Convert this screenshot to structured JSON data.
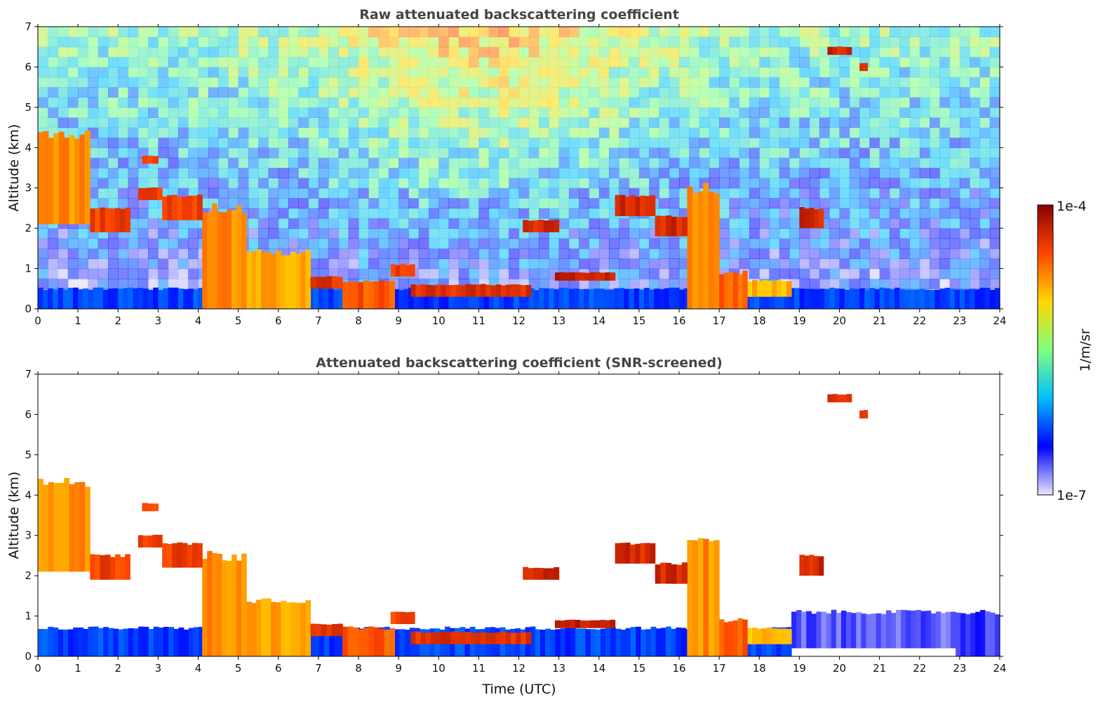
{
  "chart_data": [
    {
      "type": "heatmap",
      "title": "Raw attenuated backscattering coefficient",
      "xlabel": "",
      "ylabel": "Altitude (km)",
      "xlim": [
        0,
        24
      ],
      "ylim": [
        0,
        7
      ],
      "xticks": [
        "0",
        "1",
        "2",
        "3",
        "4",
        "5",
        "6",
        "7",
        "8",
        "9",
        "10",
        "11",
        "12",
        "13",
        "14",
        "15",
        "16",
        "17",
        "18",
        "19",
        "20",
        "21",
        "22",
        "23",
        "24"
      ],
      "yticks": [
        "0",
        "1",
        "2",
        "3",
        "4",
        "5",
        "6",
        "7"
      ],
      "background_noise": "strong, increasing with altitude; maximum around 9-14 UTC",
      "features": [
        {
          "t0": 0.0,
          "t1": 1.3,
          "bottom_km": 2.1,
          "top_km": 4.3,
          "level": 0.75
        },
        {
          "t0": 1.3,
          "t1": 2.3,
          "bottom_km": 1.9,
          "top_km": 2.5,
          "level": 0.85
        },
        {
          "t0": 2.5,
          "t1": 3.1,
          "bottom_km": 2.7,
          "top_km": 3.0,
          "level": 0.85
        },
        {
          "t0": 2.6,
          "t1": 3.0,
          "bottom_km": 3.6,
          "top_km": 3.8,
          "level": 0.85
        },
        {
          "t0": 3.1,
          "t1": 4.1,
          "bottom_km": 2.2,
          "top_km": 2.8,
          "level": 0.85
        },
        {
          "t0": 4.1,
          "t1": 5.2,
          "bottom_km": 0.0,
          "top_km": 2.5,
          "level": 0.75
        },
        {
          "t0": 5.2,
          "t1": 6.8,
          "bottom_km": 0.0,
          "top_km": 1.4,
          "level": 0.72
        },
        {
          "t0": 6.8,
          "t1": 7.6,
          "bottom_km": 0.5,
          "top_km": 0.8,
          "level": 0.88
        },
        {
          "t0": 7.6,
          "t1": 8.9,
          "bottom_km": 0.0,
          "top_km": 0.7,
          "level": 0.82
        },
        {
          "t0": 8.8,
          "t1": 9.4,
          "bottom_km": 0.8,
          "top_km": 1.1,
          "level": 0.85
        },
        {
          "t0": 9.3,
          "t1": 12.3,
          "bottom_km": 0.3,
          "top_km": 0.6,
          "level": 0.88
        },
        {
          "t0": 12.1,
          "t1": 13.0,
          "bottom_km": 1.9,
          "top_km": 2.2,
          "level": 0.9
        },
        {
          "t0": 12.9,
          "t1": 14.4,
          "bottom_km": 0.7,
          "top_km": 0.9,
          "level": 0.92
        },
        {
          "t0": 14.4,
          "t1": 15.4,
          "bottom_km": 2.3,
          "top_km": 2.8,
          "level": 0.9
        },
        {
          "t0": 15.4,
          "t1": 16.2,
          "bottom_km": 1.8,
          "top_km": 2.3,
          "level": 0.9
        },
        {
          "t0": 16.2,
          "t1": 17.0,
          "bottom_km": 0.0,
          "top_km": 3.0,
          "level": 0.75
        },
        {
          "t0": 17.0,
          "t1": 17.7,
          "bottom_km": 0.0,
          "top_km": 0.9,
          "level": 0.8
        },
        {
          "t0": 17.7,
          "t1": 18.8,
          "bottom_km": 0.3,
          "top_km": 0.7,
          "level": 0.7
        },
        {
          "t0": 19.0,
          "t1": 19.6,
          "bottom_km": 2.0,
          "top_km": 2.5,
          "level": 0.9
        },
        {
          "t0": 19.7,
          "t1": 20.3,
          "bottom_km": 6.3,
          "top_km": 6.5,
          "level": 0.9
        },
        {
          "t0": 20.5,
          "t1": 20.7,
          "bottom_km": 5.9,
          "top_km": 6.1,
          "level": 0.9
        },
        {
          "t0": 0.0,
          "t1": 24.0,
          "bottom_km": 0.0,
          "top_km": 0.5,
          "level": 0.22
        }
      ]
    },
    {
      "type": "heatmap",
      "title": "Attenuated backscattering coefficient (SNR-screened)",
      "xlabel": "Time (UTC)",
      "ylabel": "Altitude (km)",
      "xlim": [
        0,
        24
      ],
      "ylim": [
        0,
        7
      ],
      "xticks": [
        "0",
        "1",
        "2",
        "3",
        "4",
        "5",
        "6",
        "7",
        "8",
        "9",
        "10",
        "11",
        "12",
        "13",
        "14",
        "15",
        "16",
        "17",
        "18",
        "19",
        "20",
        "21",
        "22",
        "23",
        "24"
      ],
      "yticks": [
        "0",
        "1",
        "2",
        "3",
        "4",
        "5",
        "6",
        "7"
      ],
      "background": "white (screened out)",
      "features": [
        {
          "t0": 0.0,
          "t1": 1.3,
          "bottom_km": 2.1,
          "top_km": 4.3,
          "level": 0.75
        },
        {
          "t0": 1.3,
          "t1": 2.3,
          "bottom_km": 1.9,
          "top_km": 2.5,
          "level": 0.85
        },
        {
          "t0": 2.5,
          "t1": 3.1,
          "bottom_km": 2.7,
          "top_km": 3.0,
          "level": 0.85
        },
        {
          "t0": 2.6,
          "t1": 3.0,
          "bottom_km": 3.6,
          "top_km": 3.8,
          "level": 0.85
        },
        {
          "t0": 3.1,
          "t1": 4.1,
          "bottom_km": 2.2,
          "top_km": 2.8,
          "level": 0.85
        },
        {
          "t0": 4.1,
          "t1": 5.2,
          "bottom_km": 0.0,
          "top_km": 2.5,
          "level": 0.75
        },
        {
          "t0": 5.2,
          "t1": 6.8,
          "bottom_km": 0.0,
          "top_km": 1.4,
          "level": 0.72
        },
        {
          "t0": 6.8,
          "t1": 7.6,
          "bottom_km": 0.5,
          "top_km": 0.8,
          "level": 0.88
        },
        {
          "t0": 7.6,
          "t1": 8.9,
          "bottom_km": 0.0,
          "top_km": 0.7,
          "level": 0.82
        },
        {
          "t0": 8.8,
          "t1": 9.4,
          "bottom_km": 0.8,
          "top_km": 1.1,
          "level": 0.85
        },
        {
          "t0": 9.3,
          "t1": 12.3,
          "bottom_km": 0.3,
          "top_km": 0.6,
          "level": 0.88
        },
        {
          "t0": 12.1,
          "t1": 13.0,
          "bottom_km": 1.9,
          "top_km": 2.2,
          "level": 0.9
        },
        {
          "t0": 12.9,
          "t1": 14.4,
          "bottom_km": 0.7,
          "top_km": 0.9,
          "level": 0.92
        },
        {
          "t0": 14.4,
          "t1": 15.4,
          "bottom_km": 2.3,
          "top_km": 2.8,
          "level": 0.9
        },
        {
          "t0": 15.4,
          "t1": 16.2,
          "bottom_km": 1.8,
          "top_km": 2.3,
          "level": 0.9
        },
        {
          "t0": 16.2,
          "t1": 17.0,
          "bottom_km": 0.0,
          "top_km": 3.0,
          "level": 0.75
        },
        {
          "t0": 17.0,
          "t1": 17.7,
          "bottom_km": 0.0,
          "top_km": 0.9,
          "level": 0.8
        },
        {
          "t0": 17.7,
          "t1": 18.8,
          "bottom_km": 0.3,
          "top_km": 0.7,
          "level": 0.7
        },
        {
          "t0": 19.0,
          "t1": 19.6,
          "bottom_km": 2.0,
          "top_km": 2.5,
          "level": 0.9
        },
        {
          "t0": 19.7,
          "t1": 20.3,
          "bottom_km": 6.3,
          "top_km": 6.5,
          "level": 0.9
        },
        {
          "t0": 20.5,
          "t1": 20.7,
          "bottom_km": 5.9,
          "top_km": 6.1,
          "level": 0.9
        },
        {
          "t0": 0.0,
          "t1": 18.8,
          "bottom_km": 0.0,
          "top_km": 0.7,
          "level": 0.22
        },
        {
          "t0": 18.8,
          "t1": 22.9,
          "bottom_km": 0.2,
          "top_km": 1.1,
          "level": 0.1
        },
        {
          "t0": 22.9,
          "t1": 24.0,
          "bottom_km": 0.0,
          "top_km": 1.1,
          "level": 0.12
        }
      ]
    }
  ],
  "colorbar": {
    "label": "1/m/sr",
    "max_label": "1e-4",
    "min_label": "1e-7",
    "scale": "log",
    "colormap": "jet",
    "stops": [
      "#e6e6fa",
      "#0000ff",
      "#00bfff",
      "#7fff7f",
      "#ffd700",
      "#ff4500",
      "#8b0000"
    ]
  }
}
